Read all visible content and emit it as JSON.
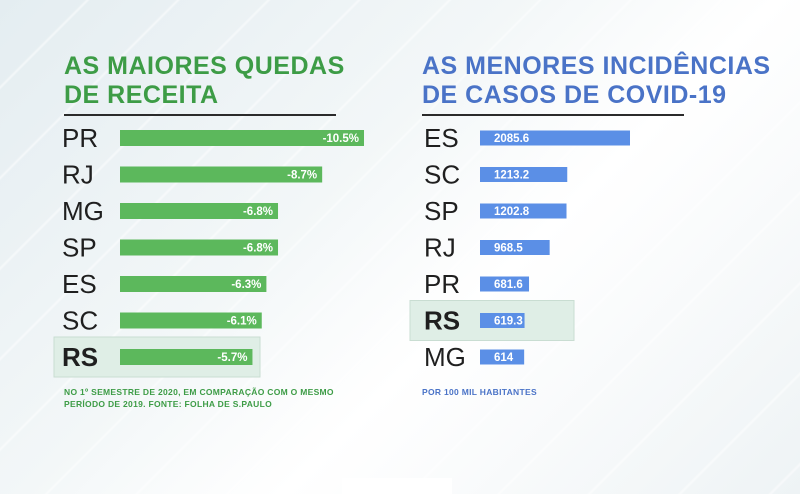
{
  "left": {
    "title_bold": "AS MAIORES",
    "title_rest_1": " QUEDAS",
    "title_line2": "DE RECEITA",
    "footnote_line1": "NO 1º SEMESTRE DE 2020, EM COMPARAÇÃO COM O MESMO",
    "footnote_line2": "PERÍODO DE 2019. FONTE: FOLHA DE S.PAULO"
  },
  "right": {
    "title_bold": "AS MENORES",
    "title_rest_1": " INCIDÊNCIAS",
    "title_line2": "DE CASOS DE COVID-19",
    "footnote_line1": "POR 100 MIL HABITANTES"
  },
  "colors": {
    "green": "#5cb85c",
    "blue": "#5b8fe6",
    "highlight": "#dfeee6",
    "label": "#1f1f1f"
  },
  "chart_data": [
    {
      "type": "bar",
      "orientation": "horizontal",
      "categories": [
        "PR",
        "RJ",
        "MG",
        "SP",
        "ES",
        "SC",
        "RS"
      ],
      "values": [
        -10.5,
        -8.7,
        -6.8,
        -6.8,
        -6.3,
        -6.1,
        -5.7
      ],
      "value_labels": [
        "-10.5%",
        "-8.7%",
        "-6.8%",
        "-6.8%",
        "-6.3%",
        "-6.1%",
        "-5.7%"
      ],
      "unit": "%",
      "highlight": "RS"
    },
    {
      "type": "bar",
      "orientation": "horizontal",
      "categories": [
        "ES",
        "SC",
        "SP",
        "RJ",
        "PR",
        "RS",
        "MG"
      ],
      "values": [
        2085.6,
        1213.2,
        1202.8,
        968.5,
        681.6,
        619.3,
        614
      ],
      "value_labels": [
        "2085.6",
        "1213.2",
        "1202.8",
        "968.5",
        "681.6",
        "619.3",
        "614"
      ],
      "highlight": "RS"
    }
  ]
}
